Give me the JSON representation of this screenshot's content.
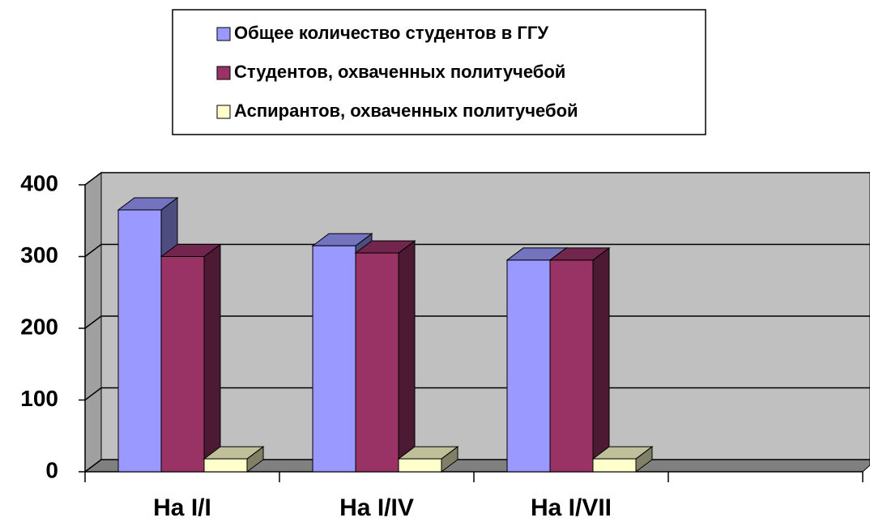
{
  "chart_data": {
    "type": "bar3d",
    "categories": [
      "На I/I",
      "На I/IV",
      "На I/VII",
      null
    ],
    "series": [
      {
        "name": "Общее количество студентов в ГГУ",
        "color": "#9999ff",
        "values": [
          365,
          315,
          295,
          null
        ]
      },
      {
        "name": "Студентов, охваченных политучебой",
        "color": "#993366",
        "values": [
          300,
          305,
          295,
          null
        ]
      },
      {
        "name": "Аспирантов, охваченных политучебой",
        "color": "#ffffcc",
        "values": [
          18,
          18,
          18,
          null
        ]
      }
    ],
    "ylim": [
      0,
      400
    ],
    "yticks": [
      0,
      100,
      200,
      300,
      400
    ],
    "grid": true,
    "legend": "top"
  }
}
